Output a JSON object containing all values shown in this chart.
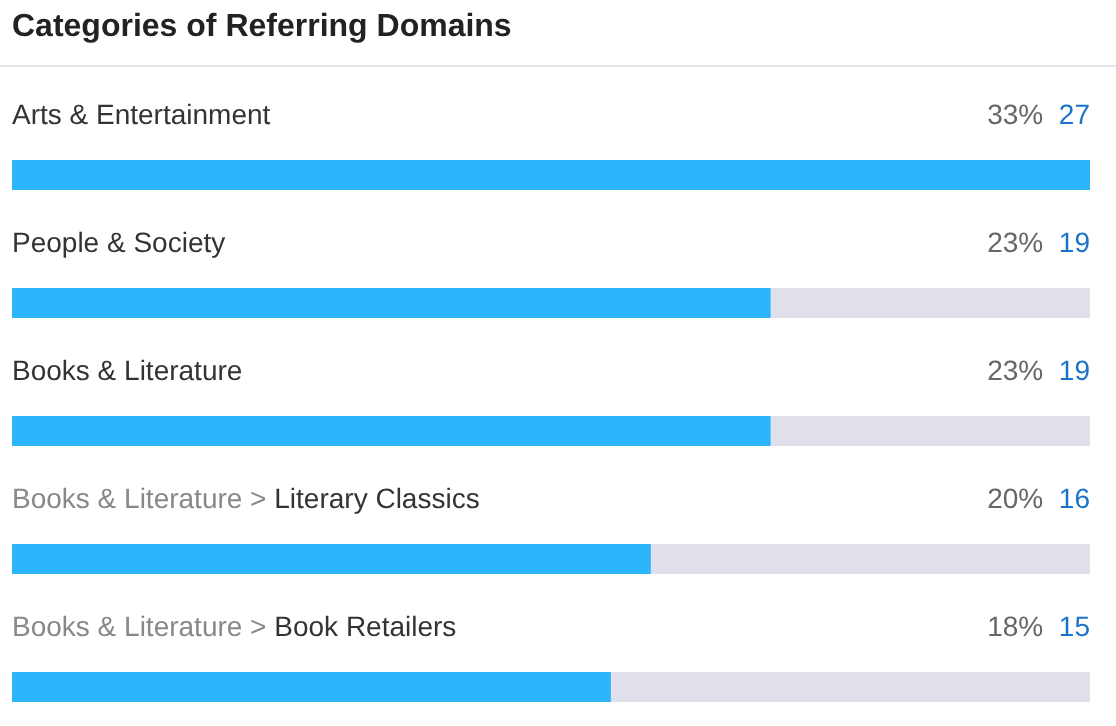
{
  "chart_data": {
    "type": "bar",
    "orientation": "horizontal",
    "title": "Categories of Referring Domains",
    "categories": [
      "Arts & Entertainment",
      "People & Society",
      "Books & Literature",
      "Books & Literature > Literary Classics",
      "Books & Literature > Book Retailers"
    ],
    "values": [
      27,
      19,
      19,
      16,
      15
    ],
    "value_labels": [
      "33% 27",
      "23% 19",
      "23% 19",
      "20% 16",
      "18% 15"
    ],
    "color": "#2db5fb"
  }
}
